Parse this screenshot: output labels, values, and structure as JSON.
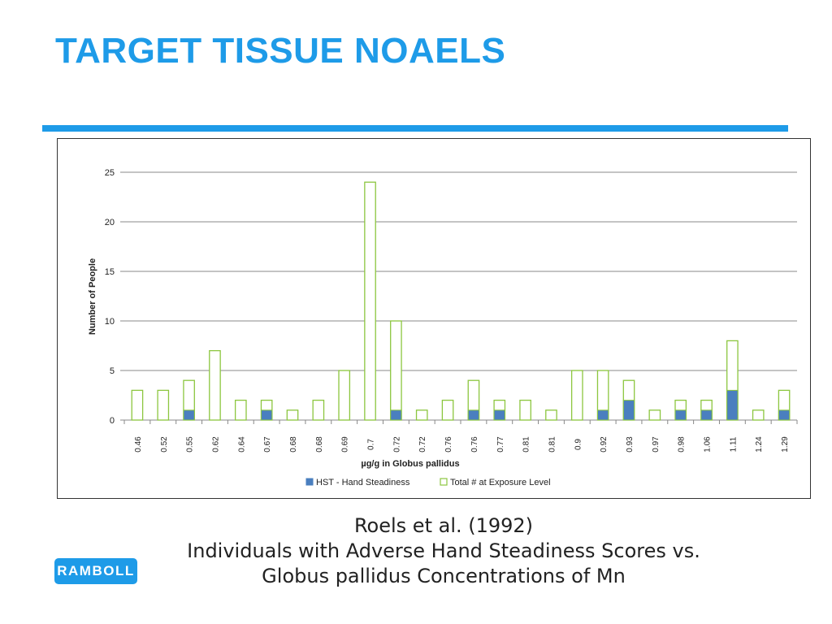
{
  "slide": {
    "title": "TARGET TISSUE NOAELS",
    "caption_line1": "Roels et al. (1992)",
    "caption_line2": "Individuals with Adverse Hand Steadiness Scores vs.",
    "caption_line3": "Globus pallidus Concentrations of Mn",
    "logo_text": "RAMBOLL",
    "accent_color": "#1e9be8"
  },
  "chart_data": {
    "type": "bar",
    "stacked": true,
    "title": "",
    "xlabel": "µg/g in Globus pallidus",
    "ylabel": "Number of People",
    "ylim": [
      0,
      25
    ],
    "yticks": [
      0,
      5,
      10,
      15,
      20,
      25
    ],
    "grid": true,
    "legend_position": "bottom",
    "categories": [
      "0.46",
      "0.52",
      "0.55",
      "0.62",
      "0.64",
      "0.67",
      "0.68",
      "0.68",
      "0.69",
      "0.7",
      "0.72",
      "0.72",
      "0.76",
      "0.76",
      "0.77",
      "0.81",
      "0.81",
      "0.9",
      "0.92",
      "0.93",
      "0.97",
      "0.98",
      "1.06",
      "1.11",
      "1.24",
      "1.29"
    ],
    "series": [
      {
        "name": "HST - Hand Steadiness",
        "color": "#4a7fbf",
        "values": [
          0,
          0,
          1,
          0,
          0,
          1,
          0,
          0,
          0,
          0,
          1,
          0,
          0,
          1,
          1,
          0,
          0,
          0,
          1,
          2,
          0,
          1,
          1,
          3,
          0,
          1
        ]
      },
      {
        "name": "Total # at Exposure Level",
        "color": "#8cc63f",
        "values": [
          3,
          3,
          4,
          7,
          2,
          2,
          1,
          2,
          5,
          24,
          10,
          1,
          2,
          4,
          2,
          2,
          1,
          5,
          5,
          4,
          1,
          2,
          2,
          8,
          1,
          3
        ]
      }
    ]
  }
}
